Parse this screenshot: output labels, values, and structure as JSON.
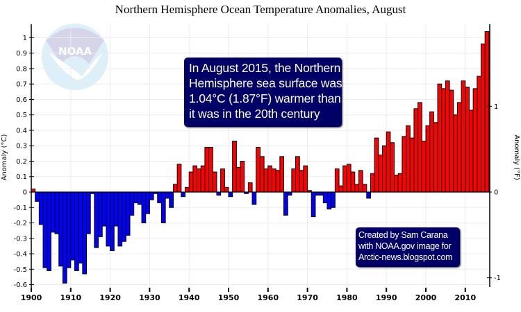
{
  "chart_data": {
    "type": "bar",
    "title": "Northern Hemisphere Ocean Temperature Anomalies, August",
    "ylabel": "Anomaly (°C)",
    "ylabel_right": "Anomaly (°F)",
    "xlabel": "",
    "x_start": 1900,
    "x_end": 2015,
    "ylim": [
      -0.6,
      1.1
    ],
    "yticks": [
      "1",
      "0.9",
      "0.8",
      "0.7",
      "0.6",
      "0.5",
      "0.4",
      "0.3",
      "0.2",
      "0.1",
      "0",
      "-0.1",
      "-0.2",
      "-0.3",
      "-0.4",
      "-0.5",
      "-0.6"
    ],
    "ytick_values": [
      1,
      0.9,
      0.8,
      0.7,
      0.6,
      0.5,
      0.4,
      0.3,
      0.2,
      0.1,
      0,
      -0.1,
      -0.2,
      -0.3,
      -0.4,
      -0.5,
      -0.6
    ],
    "right_ticks": [
      {
        "label": "1",
        "f": 1
      },
      {
        "label": "0",
        "f": 0
      },
      {
        "label": "-1",
        "f": -1
      }
    ],
    "xticks": [
      "1900",
      "1910",
      "1920",
      "1930",
      "1940",
      "1950",
      "1960",
      "1970",
      "1980",
      "1990",
      "2000",
      "2010"
    ],
    "grid": true,
    "colors": {
      "positive": "#ff0000",
      "negative": "#0000ff",
      "box": "#000066",
      "grid": "#ebebeb"
    },
    "years": [
      1900,
      1901,
      1902,
      1903,
      1904,
      1905,
      1906,
      1907,
      1908,
      1909,
      1910,
      1911,
      1912,
      1913,
      1914,
      1915,
      1916,
      1917,
      1918,
      1919,
      1920,
      1921,
      1922,
      1923,
      1924,
      1925,
      1926,
      1927,
      1928,
      1929,
      1930,
      1931,
      1932,
      1933,
      1934,
      1935,
      1936,
      1937,
      1938,
      1939,
      1940,
      1941,
      1942,
      1943,
      1944,
      1945,
      1946,
      1947,
      1948,
      1949,
      1950,
      1951,
      1952,
      1953,
      1954,
      1955,
      1956,
      1957,
      1958,
      1959,
      1960,
      1961,
      1962,
      1963,
      1964,
      1965,
      1966,
      1967,
      1968,
      1969,
      1970,
      1971,
      1972,
      1973,
      1974,
      1975,
      1976,
      1977,
      1978,
      1979,
      1980,
      1981,
      1982,
      1983,
      1984,
      1985,
      1986,
      1987,
      1988,
      1989,
      1990,
      1991,
      1992,
      1993,
      1994,
      1995,
      1996,
      1997,
      1998,
      1999,
      2000,
      2001,
      2002,
      2003,
      2004,
      2005,
      2006,
      2007,
      2008,
      2009,
      2010,
      2011,
      2012,
      2013,
      2014,
      2015
    ],
    "values": [
      0.02,
      -0.06,
      -0.21,
      -0.49,
      -0.51,
      -0.26,
      -0.27,
      -0.48,
      -0.59,
      -0.49,
      -0.44,
      -0.51,
      -0.46,
      -0.53,
      -0.27,
      -0.01,
      -0.36,
      -0.29,
      -0.22,
      -0.35,
      -0.38,
      -0.22,
      -0.35,
      -0.32,
      -0.28,
      -0.15,
      -0.07,
      -0.08,
      -0.2,
      -0.14,
      -0.05,
      -0.01,
      -0.07,
      -0.2,
      -0.04,
      -0.1,
      0.05,
      0.18,
      -0.03,
      0.03,
      0.13,
      0.17,
      0.15,
      0.17,
      0.29,
      0.29,
      0.13,
      -0.02,
      0.15,
      0.03,
      -0.03,
      0.33,
      0.16,
      0.2,
      -0.01,
      0.06,
      -0.08,
      0.29,
      0.23,
      0.15,
      0.17,
      0.15,
      0.14,
      0.23,
      -0.15,
      -0.02,
      0.15,
      0.23,
      0.14,
      0.17,
      0.01,
      -0.16,
      -0.02,
      -0.02,
      -0.07,
      -0.11,
      -0.1,
      0.15,
      0.04,
      0.17,
      0.18,
      0.13,
      0.05,
      0.14,
      0.05,
      -0.04,
      0.12,
      0.35,
      0.24,
      0.3,
      0.39,
      0.32,
      0.11,
      0.12,
      0.36,
      0.43,
      0.35,
      0.54,
      0.58,
      0.33,
      0.43,
      0.52,
      0.45,
      0.7,
      0.67,
      0.72,
      0.66,
      0.5,
      0.58,
      0.72,
      0.68,
      0.53,
      0.67,
      0.75,
      0.96,
      1.04
    ]
  },
  "annotation": {
    "lines": [
      "In August 2015, the Northern",
      "Hemisphere sea surface was",
      "1.04°C (1.87°F) warmer than",
      "it was in the 20th century"
    ]
  },
  "credit": {
    "lines": [
      "Created by Sam Carana",
      "with NOAA.gov image for",
      "Arctic-news.blogspot.com"
    ]
  },
  "logo": {
    "text": "NOAA",
    "ring_top": "NATIONAL OCEANIC AND ATMOSPHERIC ADMINISTRATION",
    "ring_bottom": "U.S. DEPARTMENT OF COMMERCE"
  }
}
